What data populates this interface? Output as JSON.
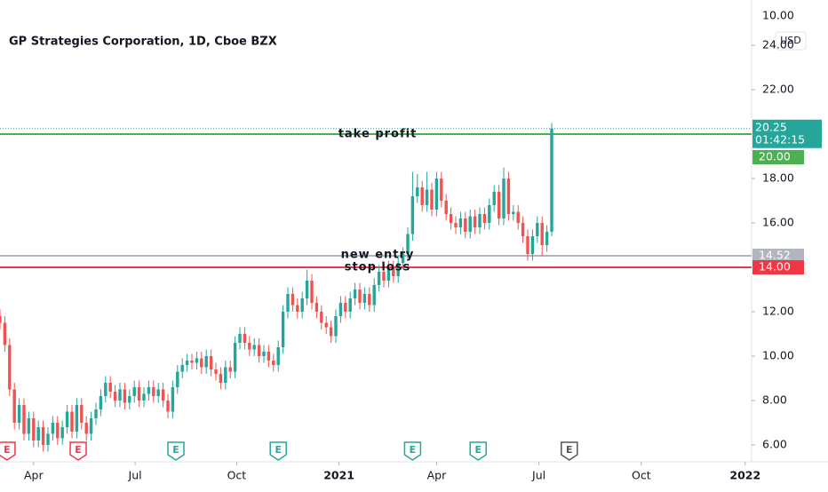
{
  "chart_data": {
    "type": "candlestick",
    "title": "GP Strategies Corporation, 1D, Cboe BZX",
    "currency": "USD",
    "top_label": "10.00",
    "up_color": "#26a69a",
    "down_color": "#ef5350",
    "xlim": [
      0,
      470
    ],
    "ylim": [
      5.2,
      26
    ],
    "xticks": [
      {
        "value": 21,
        "label": "Apr"
      },
      {
        "value": 84.5,
        "label": "Jul"
      },
      {
        "value": 148,
        "label": "Oct"
      },
      {
        "value": 212,
        "label": "2021"
      },
      {
        "value": 273,
        "label": "Apr"
      },
      {
        "value": 337,
        "label": "Jul"
      },
      {
        "value": 401,
        "label": "Oct"
      },
      {
        "value": 466,
        "label": "2022"
      }
    ],
    "yticks": [
      {
        "value": 6,
        "label": "6.00"
      },
      {
        "value": 8,
        "label": "8.00"
      },
      {
        "value": 10,
        "label": "10.00"
      },
      {
        "value": 12,
        "label": "12.00"
      },
      {
        "value": 16,
        "label": "16.00"
      },
      {
        "value": 18,
        "label": "18.00"
      },
      {
        "value": 22,
        "label": "22.00"
      },
      {
        "value": 24,
        "label": "24.00"
      }
    ],
    "x": [
      0,
      3,
      6,
      9,
      12,
      15,
      18,
      21,
      24,
      27,
      30,
      33,
      36,
      39,
      42,
      45,
      48,
      51,
      54,
      57,
      60,
      63,
      66,
      69,
      72,
      75,
      78,
      81,
      84,
      87,
      90,
      93,
      96,
      99,
      102,
      105,
      108,
      111,
      114,
      117,
      120,
      123,
      126,
      129,
      132,
      135,
      138,
      141,
      144,
      147,
      150,
      153,
      156,
      159,
      162,
      165,
      168,
      171,
      174,
      177,
      180,
      183,
      186,
      189,
      192,
      195,
      198,
      201,
      204,
      207,
      210,
      213,
      216,
      219,
      222,
      225,
      228,
      231,
      234,
      237,
      240,
      243,
      246,
      249,
      252,
      255,
      258,
      261,
      264,
      267,
      270,
      273,
      276,
      279,
      282,
      285,
      288,
      291,
      294,
      297,
      300,
      303,
      306,
      309,
      312,
      315,
      318,
      321,
      324,
      327,
      330,
      333,
      336,
      339,
      342,
      345
    ],
    "candles": [
      [
        11.8,
        12.1,
        11.2,
        11.5
      ],
      [
        11.5,
        11.8,
        10.2,
        10.5
      ],
      [
        10.5,
        10.8,
        8.2,
        8.5
      ],
      [
        8.5,
        8.8,
        6.7,
        7.0
      ],
      [
        7.0,
        8.1,
        6.7,
        7.8
      ],
      [
        7.8,
        8.1,
        6.2,
        6.5
      ],
      [
        6.5,
        7.5,
        6.2,
        7.2
      ],
      [
        7.2,
        7.5,
        5.9,
        6.2
      ],
      [
        6.2,
        7.1,
        5.9,
        6.8
      ],
      [
        6.8,
        7.1,
        5.7,
        6.0
      ],
      [
        6.0,
        6.8,
        5.7,
        6.5
      ],
      [
        6.5,
        7.3,
        6.2,
        7.0
      ],
      [
        7.0,
        7.3,
        6.0,
        6.3
      ],
      [
        6.3,
        7.1,
        6.0,
        6.8
      ],
      [
        6.8,
        7.8,
        6.5,
        7.5
      ],
      [
        7.5,
        7.8,
        6.3,
        6.6
      ],
      [
        6.6,
        8.1,
        6.3,
        7.8
      ],
      [
        7.8,
        8.1,
        6.7,
        7.0
      ],
      [
        7.0,
        7.3,
        6.2,
        6.5
      ],
      [
        6.5,
        7.5,
        6.2,
        7.2
      ],
      [
        7.2,
        7.9,
        6.9,
        7.6
      ],
      [
        7.6,
        8.5,
        7.3,
        8.2
      ],
      [
        8.2,
        9.1,
        7.9,
        8.8
      ],
      [
        8.8,
        9.1,
        8.1,
        8.4
      ],
      [
        8.4,
        8.7,
        7.7,
        8.0
      ],
      [
        8.0,
        8.8,
        7.7,
        8.5
      ],
      [
        8.5,
        8.8,
        7.6,
        7.9
      ],
      [
        7.9,
        8.5,
        7.6,
        8.2
      ],
      [
        8.2,
        8.9,
        7.9,
        8.6
      ],
      [
        8.6,
        8.9,
        7.7,
        8.0
      ],
      [
        8.0,
        8.6,
        7.7,
        8.3
      ],
      [
        8.3,
        8.9,
        8.0,
        8.6
      ],
      [
        8.6,
        8.9,
        7.9,
        8.2
      ],
      [
        8.2,
        8.8,
        7.9,
        8.5
      ],
      [
        8.5,
        8.8,
        7.7,
        8.0
      ],
      [
        8.0,
        8.3,
        7.2,
        7.5
      ],
      [
        7.5,
        8.9,
        7.2,
        8.6
      ],
      [
        8.6,
        9.6,
        8.3,
        9.3
      ],
      [
        9.3,
        9.9,
        9.0,
        9.6
      ],
      [
        9.6,
        10.1,
        9.3,
        9.8
      ],
      [
        9.8,
        10.1,
        9.4,
        9.7
      ],
      [
        9.7,
        10.2,
        9.4,
        9.9
      ],
      [
        9.9,
        10.2,
        9.2,
        9.5
      ],
      [
        9.5,
        10.3,
        9.2,
        10.0
      ],
      [
        10.0,
        10.3,
        9.1,
        9.4
      ],
      [
        9.4,
        9.7,
        8.9,
        9.2
      ],
      [
        9.2,
        9.5,
        8.5,
        8.8
      ],
      [
        8.8,
        9.8,
        8.5,
        9.5
      ],
      [
        9.5,
        9.8,
        9.0,
        9.3
      ],
      [
        9.3,
        10.9,
        9.0,
        10.6
      ],
      [
        10.6,
        11.3,
        10.3,
        11.0
      ],
      [
        11.0,
        11.3,
        10.3,
        10.6
      ],
      [
        10.6,
        10.9,
        10.0,
        10.3
      ],
      [
        10.3,
        10.8,
        10.0,
        10.5
      ],
      [
        10.5,
        10.8,
        9.7,
        10.0
      ],
      [
        10.0,
        10.5,
        9.7,
        10.2
      ],
      [
        10.2,
        10.5,
        9.5,
        9.8
      ],
      [
        9.8,
        10.1,
        9.3,
        9.6
      ],
      [
        9.6,
        10.7,
        9.3,
        10.4
      ],
      [
        10.4,
        12.3,
        10.1,
        12.0
      ],
      [
        12.0,
        13.1,
        11.7,
        12.8
      ],
      [
        12.8,
        13.1,
        12.0,
        12.3
      ],
      [
        12.3,
        12.6,
        11.7,
        12.0
      ],
      [
        12.0,
        12.9,
        11.7,
        12.6
      ],
      [
        12.6,
        13.9,
        12.3,
        13.4
      ],
      [
        13.4,
        13.7,
        12.1,
        12.4
      ],
      [
        12.4,
        12.7,
        11.7,
        12.0
      ],
      [
        12.0,
        12.3,
        11.2,
        11.5
      ],
      [
        11.5,
        11.8,
        11.0,
        11.3
      ],
      [
        11.3,
        11.6,
        10.6,
        10.9
      ],
      [
        10.9,
        12.1,
        10.6,
        11.8
      ],
      [
        11.8,
        12.7,
        11.5,
        12.4
      ],
      [
        12.4,
        12.7,
        11.7,
        12.0
      ],
      [
        12.0,
        12.9,
        11.7,
        12.6
      ],
      [
        12.6,
        13.3,
        12.3,
        13.0
      ],
      [
        13.0,
        13.3,
        12.1,
        12.4
      ],
      [
        12.4,
        13.1,
        12.1,
        12.8
      ],
      [
        12.8,
        13.1,
        12.0,
        12.3
      ],
      [
        12.3,
        13.5,
        12.0,
        13.2
      ],
      [
        13.2,
        14.1,
        12.9,
        13.8
      ],
      [
        13.8,
        14.1,
        13.1,
        13.4
      ],
      [
        13.4,
        14.3,
        13.1,
        14.0
      ],
      [
        14.0,
        14.3,
        13.3,
        13.6
      ],
      [
        13.6,
        14.5,
        13.3,
        14.2
      ],
      [
        14.2,
        14.9,
        13.9,
        14.6
      ],
      [
        14.6,
        15.8,
        14.3,
        15.5
      ],
      [
        15.5,
        18.3,
        15.2,
        17.2
      ],
      [
        17.2,
        18.2,
        16.9,
        17.6
      ],
      [
        17.6,
        17.9,
        16.5,
        16.8
      ],
      [
        16.8,
        18.3,
        16.5,
        17.5
      ],
      [
        17.5,
        17.8,
        16.3,
        16.6
      ],
      [
        16.6,
        18.3,
        16.3,
        18.0
      ],
      [
        18.0,
        18.3,
        16.7,
        17.0
      ],
      [
        17.0,
        17.3,
        16.1,
        16.4
      ],
      [
        16.4,
        16.7,
        15.7,
        16.0
      ],
      [
        16.0,
        16.3,
        15.5,
        15.8
      ],
      [
        15.8,
        16.5,
        15.5,
        16.2
      ],
      [
        16.2,
        16.5,
        15.3,
        15.6
      ],
      [
        15.6,
        16.6,
        15.3,
        16.3
      ],
      [
        16.3,
        16.6,
        15.5,
        15.8
      ],
      [
        15.8,
        16.7,
        15.5,
        16.4
      ],
      [
        16.4,
        16.7,
        15.7,
        16.0
      ],
      [
        16.0,
        17.1,
        15.7,
        16.8
      ],
      [
        16.8,
        17.7,
        16.5,
        17.4
      ],
      [
        17.4,
        17.7,
        15.9,
        16.2
      ],
      [
        16.2,
        18.5,
        15.9,
        18.0
      ],
      [
        18.0,
        18.3,
        16.1,
        16.4
      ],
      [
        16.4,
        16.8,
        16.1,
        16.5
      ],
      [
        16.5,
        16.8,
        15.7,
        16.0
      ],
      [
        16.0,
        16.3,
        15.1,
        15.4
      ],
      [
        15.4,
        15.7,
        14.3,
        14.6
      ],
      [
        14.6,
        15.7,
        14.3,
        15.4
      ],
      [
        15.4,
        16.3,
        15.1,
        16.0
      ],
      [
        16.0,
        16.3,
        14.5,
        15.0
      ],
      [
        15.0,
        15.9,
        14.7,
        15.6
      ],
      [
        15.6,
        20.5,
        15.4,
        20.25
      ]
    ],
    "last_price": {
      "value": 20.25,
      "countdown": "01:42:15",
      "color": "#26a69a"
    },
    "hlines": [
      {
        "name": "take profit",
        "value": 20,
        "label": "20.00",
        "color": "#4caf50"
      },
      {
        "name": "new entry",
        "value": 14.52,
        "label": "14.52",
        "color": "#b2b5be"
      },
      {
        "name": "stop loss",
        "value": 14,
        "label": "14.00",
        "color": "#f23645"
      }
    ],
    "earnings": [
      {
        "x": 4.4,
        "label": "E",
        "color": "#f23645"
      },
      {
        "x": 48.9,
        "label": "E",
        "color": "#f23645"
      },
      {
        "x": 110,
        "label": "E",
        "color": "#26a69a"
      },
      {
        "x": 174,
        "label": "E",
        "color": "#26a69a"
      },
      {
        "x": 258,
        "label": "E",
        "color": "#26a69a"
      },
      {
        "x": 299,
        "label": "E",
        "color": "#26a69a"
      },
      {
        "x": 356,
        "label": "E",
        "color": "#555555"
      }
    ]
  }
}
